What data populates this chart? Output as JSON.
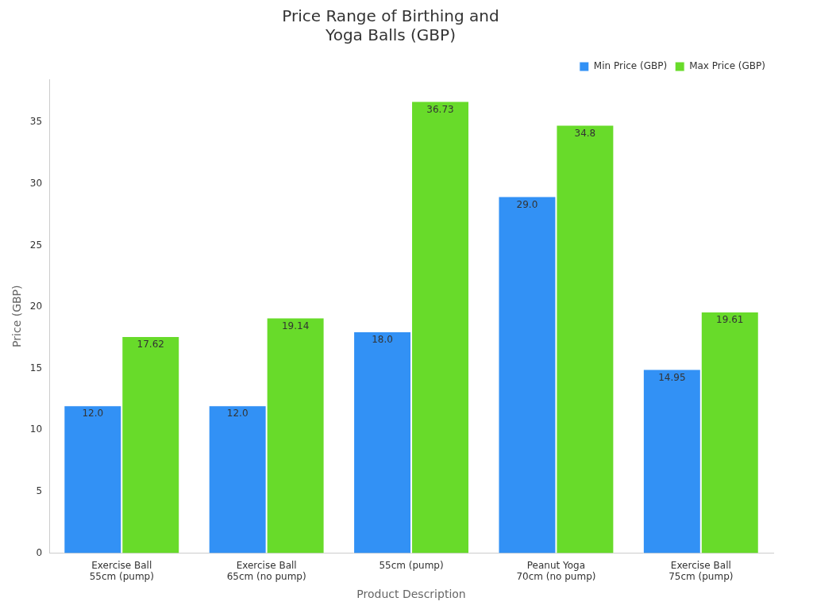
{
  "chart_data": {
    "type": "bar",
    "title": "Price Range of Birthing and Yoga Balls (GBP)",
    "xlabel": "Product Description",
    "ylabel": "Price (GBP)",
    "categories": [
      "Exercise Ball 55cm (pump)",
      "Exercise Ball 65cm (no pump)",
      "55cm (pump)",
      "Peanut Yoga 70cm (no pump)",
      "Exercise Ball 75cm (pump)"
    ],
    "series": [
      {
        "name": "Min Price (GBP)",
        "color": "#3291f5",
        "values": [
          12.0,
          12.0,
          18.0,
          29.0,
          14.95
        ],
        "value_labels": [
          "12.0",
          "12.0",
          "18.0",
          "29.0",
          "14.95"
        ]
      },
      {
        "name": "Max Price (GBP)",
        "color": "#68db2a",
        "values": [
          17.62,
          19.14,
          36.73,
          34.8,
          19.61
        ],
        "value_labels": [
          "17.62",
          "19.14",
          "36.73",
          "34.8",
          "19.61"
        ]
      }
    ],
    "ylim": [
      0,
      38.5
    ],
    "yticks": [
      0,
      5,
      10,
      15,
      20,
      25,
      30,
      35
    ],
    "grid": false,
    "legend": "top right"
  }
}
